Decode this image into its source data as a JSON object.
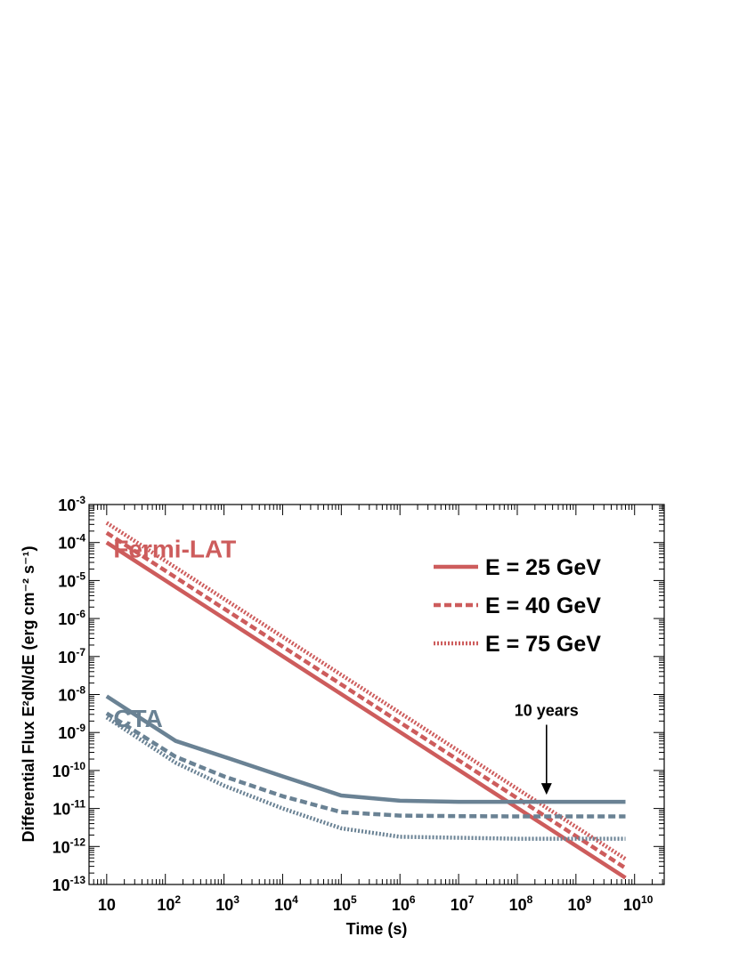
{
  "chart_data": {
    "type": "line",
    "title": "",
    "xlabel": "Time (s)",
    "ylabel": "Differential Flux E²dN/dE (erg cm⁻² s⁻¹)",
    "xscale": "log",
    "yscale": "log",
    "xlim": [
      5,
      32000000000
    ],
    "ylim": [
      1e-13,
      0.001
    ],
    "grid": false,
    "legend_position": "top-right",
    "x_tick_labels": [
      {
        "value": 10,
        "base": "10",
        "exp": ""
      },
      {
        "value": 100,
        "base": "10",
        "exp": "2"
      },
      {
        "value": 1000,
        "base": "10",
        "exp": "3"
      },
      {
        "value": 10000,
        "base": "10",
        "exp": "4"
      },
      {
        "value": 100000,
        "base": "10",
        "exp": "5"
      },
      {
        "value": 1000000,
        "base": "10",
        "exp": "6"
      },
      {
        "value": 10000000,
        "base": "10",
        "exp": "7"
      },
      {
        "value": 100000000,
        "base": "10",
        "exp": "8"
      },
      {
        "value": 1000000000,
        "base": "10",
        "exp": "9"
      },
      {
        "value": 10000000000,
        "base": "10",
        "exp": "10"
      }
    ],
    "y_tick_labels": [
      {
        "value": 1e-13,
        "base": "10",
        "exp": "-13"
      },
      {
        "value": 1e-12,
        "base": "10",
        "exp": "-12"
      },
      {
        "value": 1e-11,
        "base": "10",
        "exp": "-11"
      },
      {
        "value": 1e-10,
        "base": "10",
        "exp": "-10"
      },
      {
        "value": 1e-09,
        "base": "10",
        "exp": "-9"
      },
      {
        "value": 1e-08,
        "base": "10",
        "exp": "-8"
      },
      {
        "value": 1e-07,
        "base": "10",
        "exp": "-7"
      },
      {
        "value": 1e-06,
        "base": "10",
        "exp": "-6"
      },
      {
        "value": 1e-05,
        "base": "10",
        "exp": "-5"
      },
      {
        "value": 0.0001,
        "base": "10",
        "exp": "-4"
      },
      {
        "value": 0.001,
        "base": "10",
        "exp": "-3"
      }
    ],
    "series": [
      {
        "instrument": "Fermi-LAT",
        "energy": "E = 25 GeV",
        "style": "solid",
        "color": "#cd5c5c",
        "x": [
          10,
          7000000000
        ],
        "y": [
          0.0001,
          1.5e-13
        ]
      },
      {
        "instrument": "Fermi-LAT",
        "energy": "E = 40 GeV",
        "style": "dashed",
        "color": "#cd5c5c",
        "x": [
          10,
          7000000000
        ],
        "y": [
          0.00018,
          2.7e-13
        ]
      },
      {
        "instrument": "Fermi-LAT",
        "energy": "E = 75 GeV",
        "style": "dotted",
        "color": "#cd5c5c",
        "x": [
          10,
          7000000000
        ],
        "y": [
          0.00033,
          4.7e-13
        ]
      },
      {
        "instrument": "CTA",
        "energy": "E = 25 GeV",
        "style": "solid",
        "color": "#6a8294",
        "x": [
          10,
          150,
          1000,
          10000,
          100000,
          1000000,
          10000000,
          100000000,
          1000000000,
          7000000000
        ],
        "y": [
          9e-09,
          6e-10,
          2.3e-10,
          7e-11,
          2.2e-11,
          1.6e-11,
          1.5e-11,
          1.5e-11,
          1.5e-11,
          1.5e-11
        ]
      },
      {
        "instrument": "CTA",
        "energy": "E = 40 GeV",
        "style": "dashed",
        "color": "#6a8294",
        "x": [
          10,
          150,
          1000,
          10000,
          100000,
          1000000,
          10000000,
          100000000,
          1000000000,
          7000000000
        ],
        "y": [
          3.2e-09,
          2.3e-10,
          7e-11,
          2.1e-11,
          8e-12,
          6.5e-12,
          6.3e-12,
          6.2e-12,
          6.2e-12,
          6.2e-12
        ]
      },
      {
        "instrument": "CTA",
        "energy": "E = 75 GeV",
        "style": "dotted",
        "color": "#6a8294",
        "x": [
          10,
          150,
          1000,
          10000,
          100000,
          1000000,
          10000000,
          100000000,
          1000000000,
          7000000000
        ],
        "y": [
          2.5e-09,
          1.6e-10,
          4e-11,
          1e-11,
          3e-12,
          1.8e-12,
          1.7e-12,
          1.6e-12,
          1.6e-12,
          1.6e-12
        ]
      }
    ],
    "legend": [
      {
        "label": "E = 25 GeV",
        "style": "solid"
      },
      {
        "label": "E = 40 GeV",
        "style": "dashed"
      },
      {
        "label": "E = 75 GeV",
        "style": "dotted"
      }
    ],
    "annotations": [
      {
        "kind": "label",
        "text": "Fermi-LAT",
        "color": "#cd5c5c",
        "x": 13,
        "y": 4e-05
      },
      {
        "kind": "label",
        "text": "CTA",
        "color": "#6a8294",
        "x": 13,
        "y": 1.4e-09
      },
      {
        "kind": "arrow",
        "text": "10 years",
        "x": 315000000,
        "y_from": 1.6e-09,
        "y_to": 2.3e-11
      }
    ]
  }
}
